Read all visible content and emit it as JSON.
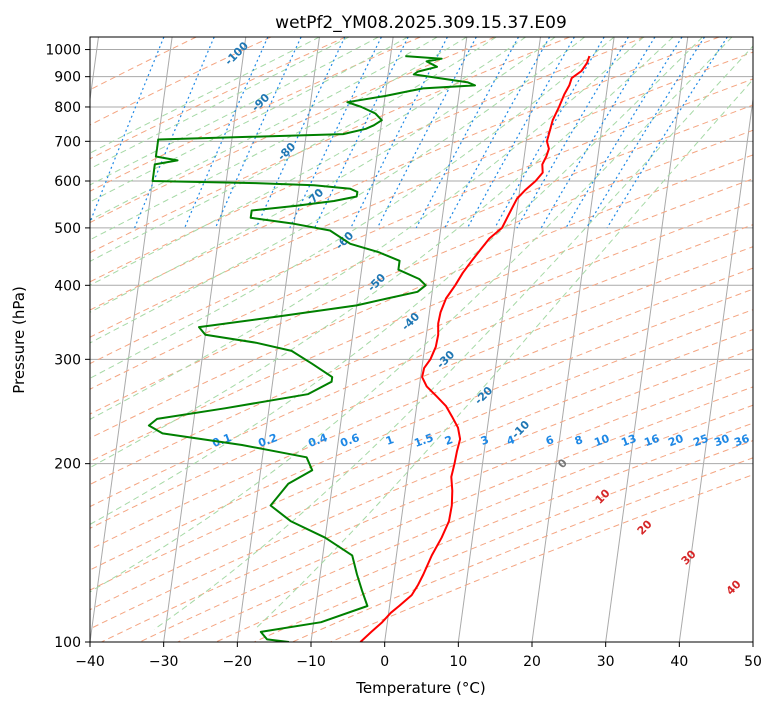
{
  "chart_data": {
    "type": "line",
    "title": "wetPf2_YM08.2025.309.15.37.E09",
    "xlabel": "Temperature (°C)",
    "ylabel": "Pressure (hPa)",
    "xlim": [
      -40,
      50
    ],
    "ylim": [
      1050,
      100
    ],
    "y_scale": "log",
    "x_ticks": [
      -40,
      -30,
      -20,
      -10,
      0,
      10,
      20,
      30,
      40,
      50
    ],
    "x_tick_labels": [
      "−40",
      "−30",
      "−20",
      "−10",
      "0",
      "10",
      "20",
      "30",
      "40",
      "50"
    ],
    "y_ticks": [
      1000,
      900,
      800,
      700,
      600,
      500,
      400,
      300,
      200,
      100
    ],
    "y_tick_labels": [
      "1000",
      "900",
      "800",
      "700",
      "600",
      "500",
      "400",
      "300",
      "200",
      "100"
    ],
    "grid": true,
    "skew": 45,
    "series": [
      {
        "color": "#ff0000",
        "points": [
          [
            975,
            17
          ],
          [
            950,
            16.8
          ],
          [
            920,
            16.2
          ],
          [
            895,
            15
          ],
          [
            870,
            14.8
          ],
          [
            840,
            14.3
          ],
          [
            800,
            13.8
          ],
          [
            760,
            13.2
          ],
          [
            730,
            13
          ],
          [
            700,
            12.8
          ],
          [
            680,
            13.2
          ],
          [
            660,
            13
          ],
          [
            640,
            12.6
          ],
          [
            620,
            12.8
          ],
          [
            600,
            12
          ],
          [
            580,
            10.8
          ],
          [
            560,
            9.8
          ],
          [
            540,
            9.3
          ],
          [
            520,
            8.8
          ],
          [
            500,
            8.3
          ],
          [
            480,
            6.8
          ],
          [
            460,
            5.8
          ],
          [
            440,
            4.8
          ],
          [
            420,
            3.8
          ],
          [
            400,
            3
          ],
          [
            380,
            2
          ],
          [
            360,
            1.5
          ],
          [
            345,
            1.4
          ],
          [
            330,
            1.6
          ],
          [
            315,
            1.5
          ],
          [
            300,
            1
          ],
          [
            290,
            0.3
          ],
          [
            280,
            0.2
          ],
          [
            270,
            1
          ],
          [
            260,
            2.5
          ],
          [
            250,
            4
          ],
          [
            240,
            5
          ],
          [
            230,
            6
          ],
          [
            220,
            6.5
          ],
          [
            210,
            6.3
          ],
          [
            200,
            6.2
          ],
          [
            190,
            6
          ],
          [
            180,
            6.4
          ],
          [
            170,
            6.6
          ],
          [
            160,
            6.5
          ],
          [
            150,
            5.8
          ],
          [
            140,
            4.8
          ],
          [
            130,
            4
          ],
          [
            125,
            3.5
          ],
          [
            120,
            2.8
          ],
          [
            115,
            1.3
          ],
          [
            112,
            0.3
          ],
          [
            108,
            -0.7
          ],
          [
            104,
            -2
          ],
          [
            100,
            -3.3
          ]
        ]
      },
      {
        "color": "#008000",
        "points": [
          [
            975,
            -8
          ],
          [
            965,
            -3
          ],
          [
            955,
            -5
          ],
          [
            935,
            -3.5
          ],
          [
            918,
            -6
          ],
          [
            908,
            -6.5
          ],
          [
            895,
            -3
          ],
          [
            880,
            1
          ],
          [
            870,
            2
          ],
          [
            860,
            -5
          ],
          [
            850,
            -7
          ],
          [
            835,
            -10
          ],
          [
            815,
            -15
          ],
          [
            800,
            -13
          ],
          [
            780,
            -11
          ],
          [
            760,
            -10
          ],
          [
            745,
            -11
          ],
          [
            735,
            -12
          ],
          [
            720,
            -15
          ],
          [
            705,
            -40
          ],
          [
            690,
            -40
          ],
          [
            680,
            -40
          ],
          [
            670,
            -40
          ],
          [
            660,
            -40
          ],
          [
            650,
            -37
          ],
          [
            640,
            -40
          ],
          [
            625,
            -40
          ],
          [
            610,
            -40
          ],
          [
            600,
            -40
          ],
          [
            595,
            -26
          ],
          [
            590,
            -18
          ],
          [
            582,
            -13
          ],
          [
            575,
            -12
          ],
          [
            565,
            -12
          ],
          [
            555,
            -15
          ],
          [
            545,
            -20
          ],
          [
            535,
            -26
          ],
          [
            520,
            -26
          ],
          [
            508,
            -20
          ],
          [
            495,
            -15
          ],
          [
            470,
            -12
          ],
          [
            455,
            -8
          ],
          [
            440,
            -5
          ],
          [
            425,
            -5
          ],
          [
            410,
            -2
          ],
          [
            400,
            -1
          ],
          [
            390,
            -2
          ],
          [
            380,
            -6
          ],
          [
            370,
            -10
          ],
          [
            355,
            -20
          ],
          [
            340,
            -31
          ],
          [
            330,
            -30
          ],
          [
            320,
            -23
          ],
          [
            310,
            -18
          ],
          [
            295,
            -15
          ],
          [
            280,
            -12
          ],
          [
            275,
            -12
          ],
          [
            262,
            -15
          ],
          [
            248,
            -26
          ],
          [
            238,
            -35
          ],
          [
            232,
            -36
          ],
          [
            225,
            -34
          ],
          [
            215,
            -23
          ],
          [
            205,
            -14
          ],
          [
            195,
            -13
          ],
          [
            185,
            -16
          ],
          [
            170,
            -18
          ],
          [
            160,
            -15
          ],
          [
            150,
            -10
          ],
          [
            140,
            -6
          ],
          [
            130,
            -5
          ],
          [
            122,
            -4
          ],
          [
            115,
            -3
          ],
          [
            108,
            -9
          ],
          [
            104,
            -17
          ],
          [
            101,
            -16
          ],
          [
            100,
            -13
          ]
        ]
      }
    ],
    "dry_adiabat_labels": [
      "-100",
      "-90",
      "-80",
      "-70",
      "-60",
      "-50",
      "-40",
      "-30",
      "-20",
      "-10"
    ],
    "moist_adiabat_labels": [
      "0",
      "10",
      "20",
      "30",
      "40"
    ],
    "mixing_ratio_labels": [
      "0.1",
      "0.2",
      "0.4",
      "0.6",
      "1",
      "1.5",
      "2",
      "3",
      "4",
      "6",
      "8",
      "10",
      "13",
      "16",
      "20",
      "25",
      "30",
      "36"
    ],
    "mixing_ratio_values": [
      0.1,
      0.2,
      0.4,
      0.6,
      1,
      1.5,
      2,
      3,
      4,
      6,
      8,
      10,
      13,
      16,
      20,
      25,
      30,
      36
    ],
    "colors": {
      "temperature": "#ff0000",
      "dewpoint": "#008000",
      "isotherm": "#aaaaaa",
      "dry_adiabat": "#f4a582",
      "moist_adiabat": "#a6d9a6",
      "mixing_ratio": "#1e88e5",
      "dry_label": "#1f77b4",
      "moist_label": "#d62728",
      "mixing_label": "#1e88e5"
    }
  }
}
